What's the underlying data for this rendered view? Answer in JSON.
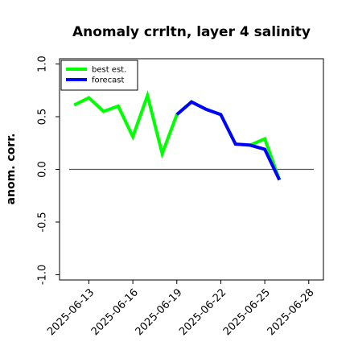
{
  "chart_data": {
    "type": "line",
    "title": "Anomaly crrltn, layer 4 salinity",
    "xlabel": "",
    "ylabel": "anom. corr.",
    "ylim": [
      -1.05,
      1.05
    ],
    "yticks": [
      -1.0,
      -0.5,
      0.0,
      0.5,
      1.0
    ],
    "ytick_labels": [
      "-1.0",
      "-0.5",
      "0.0",
      "0.5",
      "1.0"
    ],
    "xlim": [
      "2025-06-11",
      "2025-06-29"
    ],
    "xtick_dates": [
      "2025-06-13",
      "2025-06-16",
      "2025-06-19",
      "2025-06-22",
      "2025-06-25",
      "2025-06-28"
    ],
    "xtick_labels": [
      "2025-06-13",
      "2025-06-16",
      "2025-06-19",
      "2025-06-22",
      "2025-06-25",
      "2025-06-28"
    ],
    "highlight_tick": "2025-06-19",
    "highlight_color": "#228b22",
    "zero_line": 0.0,
    "legend": {
      "location": "upper-left",
      "entries": [
        "best est.",
        "forecast"
      ]
    },
    "series": [
      {
        "name": "best est.",
        "color": "#00ff00",
        "x": [
          "2025-06-12",
          "2025-06-13",
          "2025-06-14",
          "2025-06-15",
          "2025-06-16",
          "2025-06-17",
          "2025-06-18",
          "2025-06-19",
          "2025-06-20",
          "2025-06-21",
          "2025-06-22",
          "2025-06-23",
          "2025-06-24",
          "2025-06-25",
          "2025-06-26"
        ],
        "values": [
          0.61,
          0.68,
          0.55,
          0.6,
          0.31,
          0.7,
          0.15,
          0.52,
          0.64,
          0.57,
          0.52,
          0.24,
          0.23,
          0.29,
          -0.1
        ]
      },
      {
        "name": "forecast",
        "color": "#0000ff",
        "x": [
          "2025-06-19",
          "2025-06-20",
          "2025-06-21",
          "2025-06-22",
          "2025-06-23",
          "2025-06-24",
          "2025-06-25",
          "2025-06-26"
        ],
        "values": [
          0.52,
          0.64,
          0.57,
          0.52,
          0.24,
          0.23,
          0.19,
          -0.1
        ]
      }
    ]
  }
}
